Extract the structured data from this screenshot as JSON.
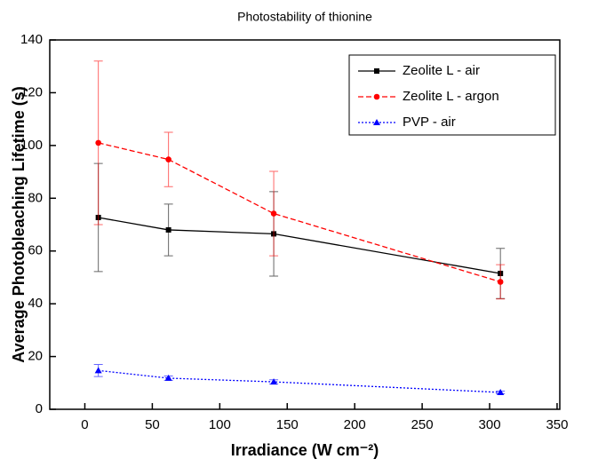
{
  "chart_data": {
    "type": "line",
    "title": "Photostability of thionine",
    "xlabel": "Irradiance (W cm⁻²)",
    "ylabel": "Average Photobleaching Lifetime (s)",
    "xlim": [
      -26,
      352
    ],
    "xticks": [
      0,
      50,
      100,
      150,
      200,
      250,
      300,
      350
    ],
    "ylim": [
      0,
      140
    ],
    "yticks": [
      0,
      20,
      40,
      60,
      80,
      100,
      120,
      140
    ],
    "legend": "upper right",
    "series": [
      {
        "name": "Zeolite L - air",
        "color": "#000000",
        "linestyle": "solid",
        "marker": "square",
        "x": [
          10,
          62,
          140,
          308
        ],
        "values": [
          72.7,
          68,
          66.5,
          51.5
        ],
        "errors": [
          20.5,
          9.8,
          16,
          9.5
        ]
      },
      {
        "name": "Zeolite L - argon",
        "color": "#ff0000",
        "linestyle": "dashed",
        "marker": "circle",
        "x": [
          10,
          62,
          140,
          308
        ],
        "values": [
          101,
          94.7,
          74.2,
          48.3
        ],
        "errors": [
          31,
          10.3,
          16,
          6.5
        ]
      },
      {
        "name": "PVP - air",
        "color": "#0000ff",
        "linestyle": "dotted",
        "marker": "triangle",
        "x": [
          10,
          62,
          140,
          308
        ],
        "values": [
          14.7,
          11.8,
          10.4,
          6.4
        ],
        "errors": [
          2.3,
          0.8,
          0.8,
          0.5
        ]
      }
    ]
  }
}
